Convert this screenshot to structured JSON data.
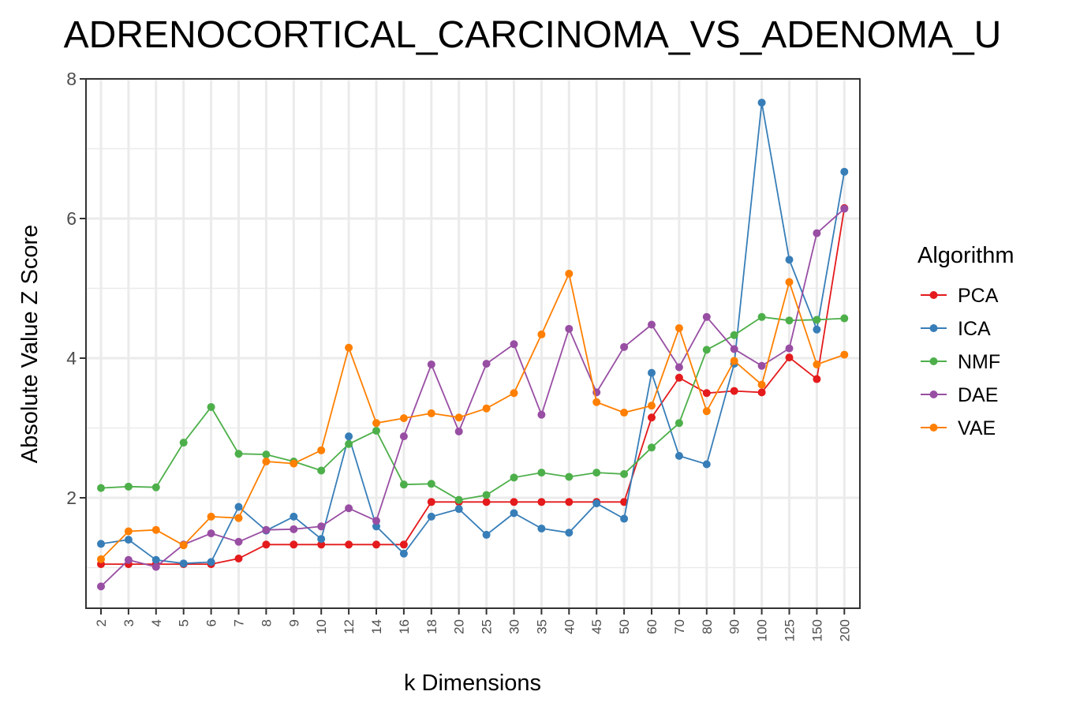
{
  "chart_data": {
    "type": "line",
    "title": "ADRENOCORTICAL_CARCINOMA_VS_ADENOMA_U",
    "xlabel": "k Dimensions",
    "ylabel": "Absolute Value Z Score",
    "ylim": [
      0.5,
      8
    ],
    "yticks": [
      2,
      4,
      6,
      8
    ],
    "grid": true,
    "legend_title": "Algorithm",
    "legend_position": "right",
    "categories": [
      "2",
      "3",
      "4",
      "5",
      "6",
      "7",
      "8",
      "9",
      "10",
      "12",
      "14",
      "16",
      "18",
      "20",
      "25",
      "30",
      "35",
      "40",
      "45",
      "50",
      "60",
      "70",
      "80",
      "90",
      "100",
      "125",
      "150",
      "200"
    ],
    "series": [
      {
        "name": "PCA",
        "color": "#e41a1c",
        "values": [
          1.05,
          1.05,
          1.05,
          1.05,
          1.05,
          1.13,
          1.33,
          1.33,
          1.33,
          1.33,
          1.33,
          1.33,
          1.94,
          1.94,
          1.94,
          1.94,
          1.94,
          1.94,
          1.94,
          1.94,
          3.15,
          3.72,
          3.5,
          3.53,
          3.51,
          4.01,
          3.7,
          6.15
        ]
      },
      {
        "name": "ICA",
        "color": "#377eb8",
        "values": [
          1.34,
          1.4,
          1.11,
          1.06,
          1.08,
          1.87,
          1.53,
          1.73,
          1.41,
          2.88,
          1.59,
          1.2,
          1.73,
          1.84,
          1.47,
          1.78,
          1.56,
          1.5,
          1.92,
          1.7,
          3.79,
          2.6,
          2.48,
          3.92,
          7.66,
          5.41,
          4.41,
          6.67
        ]
      },
      {
        "name": "NMF",
        "color": "#4daf4a",
        "values": [
          2.14,
          2.16,
          2.15,
          2.79,
          3.3,
          2.63,
          2.62,
          2.52,
          2.39,
          2.77,
          2.96,
          2.19,
          2.2,
          1.97,
          2.04,
          2.29,
          2.36,
          2.3,
          2.36,
          2.34,
          2.72,
          3.07,
          4.12,
          4.33,
          4.59,
          4.54,
          4.55,
          4.57
        ]
      },
      {
        "name": "DAE",
        "color": "#984ea3",
        "values": [
          0.73,
          1.11,
          1.01,
          1.33,
          1.49,
          1.37,
          1.54,
          1.55,
          1.59,
          1.85,
          1.67,
          2.88,
          3.91,
          2.95,
          3.92,
          4.2,
          3.19,
          4.42,
          3.51,
          4.16,
          4.48,
          3.87,
          4.59,
          4.13,
          3.89,
          4.14,
          5.79,
          6.14
        ]
      },
      {
        "name": "VAE",
        "color": "#ff7f00",
        "values": [
          1.12,
          1.52,
          1.54,
          1.32,
          1.73,
          1.71,
          2.52,
          2.49,
          2.68,
          4.15,
          3.07,
          3.14,
          3.21,
          3.15,
          3.28,
          3.5,
          4.34,
          5.21,
          3.37,
          3.22,
          3.32,
          4.43,
          3.24,
          3.96,
          3.62,
          5.09,
          3.91,
          4.05
        ]
      }
    ]
  }
}
